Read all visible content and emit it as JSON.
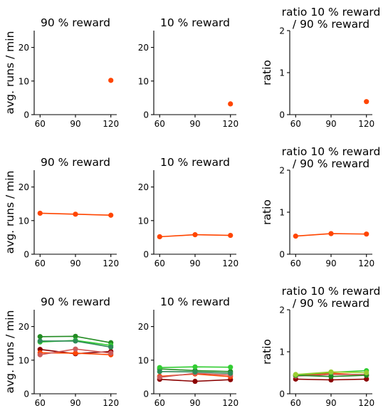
{
  "chart_data": [
    {
      "type": "scatter",
      "title": "90 % reward",
      "ylabel": "avg. runs / min",
      "x_ticks": [
        "60",
        "90",
        "120"
      ],
      "y_ticks": [
        "0",
        "10",
        "20"
      ],
      "ylim": [
        0,
        25
      ],
      "series": [
        {
          "color": "#ff4500",
          "x": [
            120
          ],
          "y": [
            10.2
          ]
        }
      ]
    },
    {
      "type": "scatter",
      "title": "10 % reward",
      "ylabel": "",
      "x_ticks": [
        "60",
        "90",
        "120"
      ],
      "y_ticks": [
        "0",
        "10",
        "20"
      ],
      "ylim": [
        0,
        25
      ],
      "series": [
        {
          "color": "#ff4500",
          "x": [
            120
          ],
          "y": [
            3.2
          ]
        }
      ]
    },
    {
      "type": "scatter",
      "title": "ratio 10 % reward\n/ 90 % reward",
      "ylabel": "ratio",
      "x_ticks": [
        "60",
        "90",
        "120"
      ],
      "y_ticks": [
        "0",
        "1",
        "2"
      ],
      "ylim": [
        0,
        2
      ],
      "series": [
        {
          "color": "#ff4500",
          "x": [
            120
          ],
          "y": [
            0.31
          ]
        }
      ]
    },
    {
      "type": "line",
      "title": "90 % reward",
      "ylabel": "avg. runs / min",
      "x_ticks": [
        "60",
        "90",
        "120"
      ],
      "y_ticks": [
        "0",
        "10",
        "20"
      ],
      "ylim": [
        0,
        25
      ],
      "series": [
        {
          "color": "#ff4500",
          "x": [
            60,
            90,
            120
          ],
          "y": [
            12.2,
            11.9,
            11.6
          ]
        }
      ]
    },
    {
      "type": "line",
      "title": "10 % reward",
      "ylabel": "",
      "x_ticks": [
        "60",
        "90",
        "120"
      ],
      "y_ticks": [
        "0",
        "10",
        "20"
      ],
      "ylim": [
        0,
        25
      ],
      "series": [
        {
          "color": "#ff4500",
          "x": [
            60,
            90,
            120
          ],
          "y": [
            5.2,
            5.8,
            5.6
          ]
        }
      ]
    },
    {
      "type": "line",
      "title": "ratio 10 % reward\n/ 90 % reward",
      "ylabel": "ratio",
      "x_ticks": [
        "60",
        "90",
        "120"
      ],
      "y_ticks": [
        "0",
        "1",
        "2"
      ],
      "ylim": [
        0,
        2
      ],
      "series": [
        {
          "color": "#ff4500",
          "x": [
            60,
            90,
            120
          ],
          "y": [
            0.43,
            0.49,
            0.48
          ]
        }
      ]
    },
    {
      "type": "line",
      "title": "90 % reward",
      "ylabel": "avg. runs / min",
      "x_ticks": [
        "60",
        "90",
        "120"
      ],
      "y_ticks": [
        "0",
        "10",
        "20"
      ],
      "ylim": [
        0,
        25
      ],
      "series": [
        {
          "color": "#8b0000",
          "x": [
            60,
            90,
            120
          ],
          "y": [
            13.2,
            11.9,
            12.6
          ]
        },
        {
          "color": "#ff4500",
          "x": [
            60,
            90,
            120
          ],
          "y": [
            12.2,
            12.1,
            11.6
          ]
        },
        {
          "color": "#cd5c5c",
          "x": [
            60,
            90,
            120
          ],
          "y": [
            11.6,
            13.3,
            12.1
          ]
        },
        {
          "color": "#228b22",
          "x": [
            60,
            90,
            120
          ],
          "y": [
            17.0,
            17.1,
            15.2
          ]
        },
        {
          "color": "#32cd32",
          "x": [
            60,
            90,
            120
          ],
          "y": [
            15.4,
            15.9,
            14.4
          ]
        },
        {
          "color": "#2e8b57",
          "x": [
            60,
            90,
            120
          ],
          "y": [
            15.7,
            15.7,
            13.9
          ]
        }
      ]
    },
    {
      "type": "line",
      "title": "10 % reward",
      "ylabel": "",
      "x_ticks": [
        "60",
        "90",
        "120"
      ],
      "y_ticks": [
        "0",
        "10",
        "20"
      ],
      "ylim": [
        0,
        25
      ],
      "series": [
        {
          "color": "#8b0000",
          "x": [
            60,
            90,
            120
          ],
          "y": [
            4.3,
            3.7,
            4.2
          ]
        },
        {
          "color": "#ff4500",
          "x": [
            60,
            90,
            120
          ],
          "y": [
            5.2,
            5.9,
            5.1
          ]
        },
        {
          "color": "#cd5c5c",
          "x": [
            60,
            90,
            120
          ],
          "y": [
            4.9,
            6.1,
            5.6
          ]
        },
        {
          "color": "#228b22",
          "x": [
            60,
            90,
            120
          ],
          "y": [
            7.4,
            6.9,
            6.6
          ]
        },
        {
          "color": "#32cd32",
          "x": [
            60,
            90,
            120
          ],
          "y": [
            7.8,
            8.0,
            7.9
          ]
        },
        {
          "color": "#2e8b57",
          "x": [
            60,
            90,
            120
          ],
          "y": [
            6.6,
            6.5,
            6.1
          ]
        }
      ]
    },
    {
      "type": "line",
      "title": "ratio 10 % reward\n/ 90 % reward",
      "ylabel": "ratio",
      "x_ticks": [
        "60",
        "90",
        "120"
      ],
      "y_ticks": [
        "0",
        "1",
        "2"
      ],
      "ylim": [
        0,
        2
      ],
      "series": [
        {
          "color": "#8b0000",
          "x": [
            60,
            90,
            120
          ],
          "y": [
            0.35,
            0.33,
            0.35
          ]
        },
        {
          "color": "#ff4500",
          "x": [
            60,
            90,
            120
          ],
          "y": [
            0.43,
            0.49,
            0.44
          ]
        },
        {
          "color": "#cd5c5c",
          "x": [
            60,
            90,
            120
          ],
          "y": [
            0.42,
            0.46,
            0.46
          ]
        },
        {
          "color": "#228b22",
          "x": [
            60,
            90,
            120
          ],
          "y": [
            0.44,
            0.41,
            0.44
          ]
        },
        {
          "color": "#32cd32",
          "x": [
            60,
            90,
            120
          ],
          "y": [
            0.45,
            0.51,
            0.55
          ]
        },
        {
          "color": "#9acd32",
          "x": [
            60,
            90,
            120
          ],
          "y": [
            0.46,
            0.52,
            0.5
          ]
        }
      ]
    }
  ]
}
